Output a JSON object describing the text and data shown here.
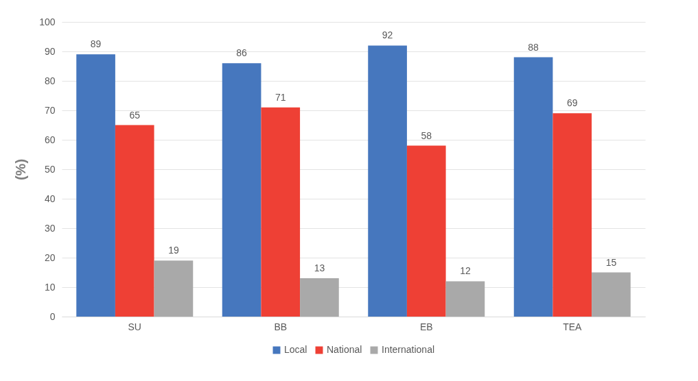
{
  "chart_data": {
    "type": "bar",
    "ylabel": "(%)",
    "categories": [
      "SU",
      "BB",
      "EB",
      "TEA"
    ],
    "series": [
      {
        "name": "Local",
        "color": "#4677be",
        "values": [
          89,
          86,
          92,
          88
        ]
      },
      {
        "name": "National",
        "color": "#ee4035",
        "values": [
          65,
          71,
          58,
          69
        ]
      },
      {
        "name": "International",
        "color": "#a9a9a9",
        "values": [
          19,
          13,
          12,
          15
        ]
      }
    ],
    "ylim": [
      0,
      100
    ],
    "yticks": [
      0,
      10,
      20,
      30,
      40,
      50,
      60,
      70,
      80,
      90,
      100
    ],
    "grid": true,
    "legend": "bottom",
    "data_labels": true
  }
}
